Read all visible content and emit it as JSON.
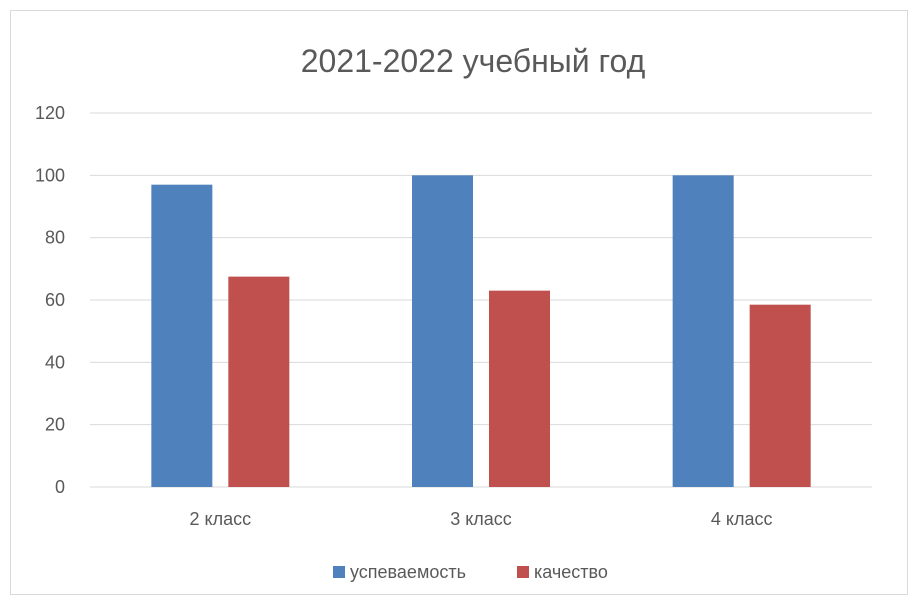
{
  "chart_data": {
    "type": "bar",
    "title": "2021-2022 учебный год",
    "categories": [
      "2 класс",
      "3 класс",
      "4 класс"
    ],
    "series": [
      {
        "name": "успеваемость",
        "color": "#4f81bd",
        "values": [
          97,
          100,
          100
        ]
      },
      {
        "name": "качество",
        "color": "#c0504d",
        "values": [
          67.5,
          63,
          58.5
        ]
      }
    ],
    "ylim": [
      0,
      120
    ],
    "yticks": [
      0,
      20,
      40,
      60,
      80,
      100,
      120
    ],
    "grid": true,
    "legend_position": "bottom"
  }
}
